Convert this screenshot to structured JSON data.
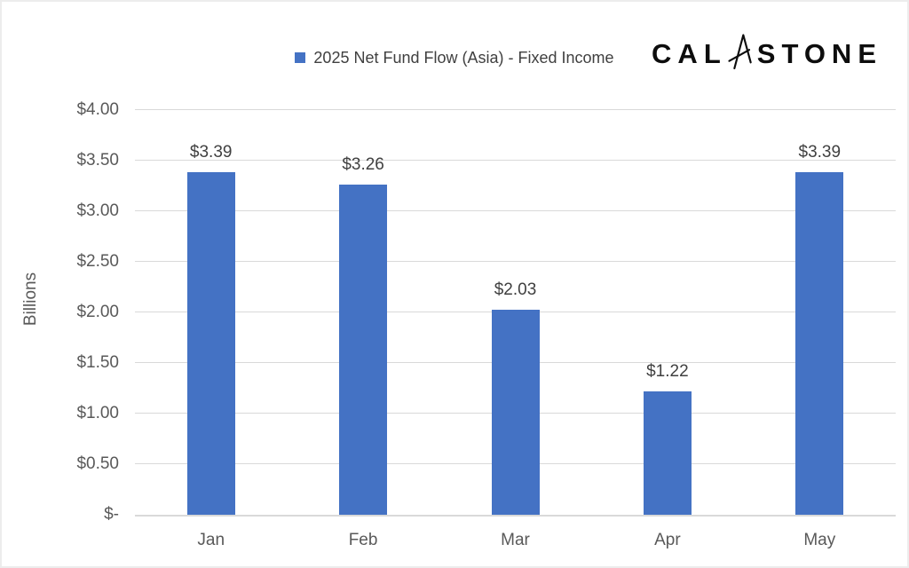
{
  "header": {
    "legend_label": "2025 Net Fund Flow (Asia) - Fixed Income",
    "logo": {
      "text_left": "CAL",
      "text_right": "STONE",
      "stylized_letter": "A"
    }
  },
  "colors": {
    "bar": "#4472C4",
    "gridline": "#D9D9D9",
    "axis_line": "#D9D9D9",
    "axis_text": "#595959",
    "data_label_text": "#404040",
    "legend_text": "#404040",
    "logo_text": "#0D0D0D"
  },
  "chart_data": {
    "type": "bar",
    "title": "2025 Net Fund Flow (Asia) - Fixed Income",
    "categories": [
      "Jan",
      "Feb",
      "Mar",
      "Apr",
      "May"
    ],
    "values": [
      3.39,
      3.26,
      2.03,
      1.22,
      3.39
    ],
    "data_labels": [
      "$3.39",
      "$3.26",
      "$2.03",
      "$1.22",
      "$3.39"
    ],
    "xlabel": "",
    "ylabel": "Billions",
    "ylim": [
      0,
      4
    ],
    "ytick_values": [
      0,
      0.5,
      1,
      1.5,
      2,
      2.5,
      3,
      3.5,
      4
    ],
    "ytick_labels": [
      "$-",
      "$0.50",
      "$1.00",
      "$1.50",
      "$2.00",
      "$2.50",
      "$3.00",
      "$3.50",
      "$4.00"
    ],
    "grid": true,
    "legend_position": "top-center"
  }
}
